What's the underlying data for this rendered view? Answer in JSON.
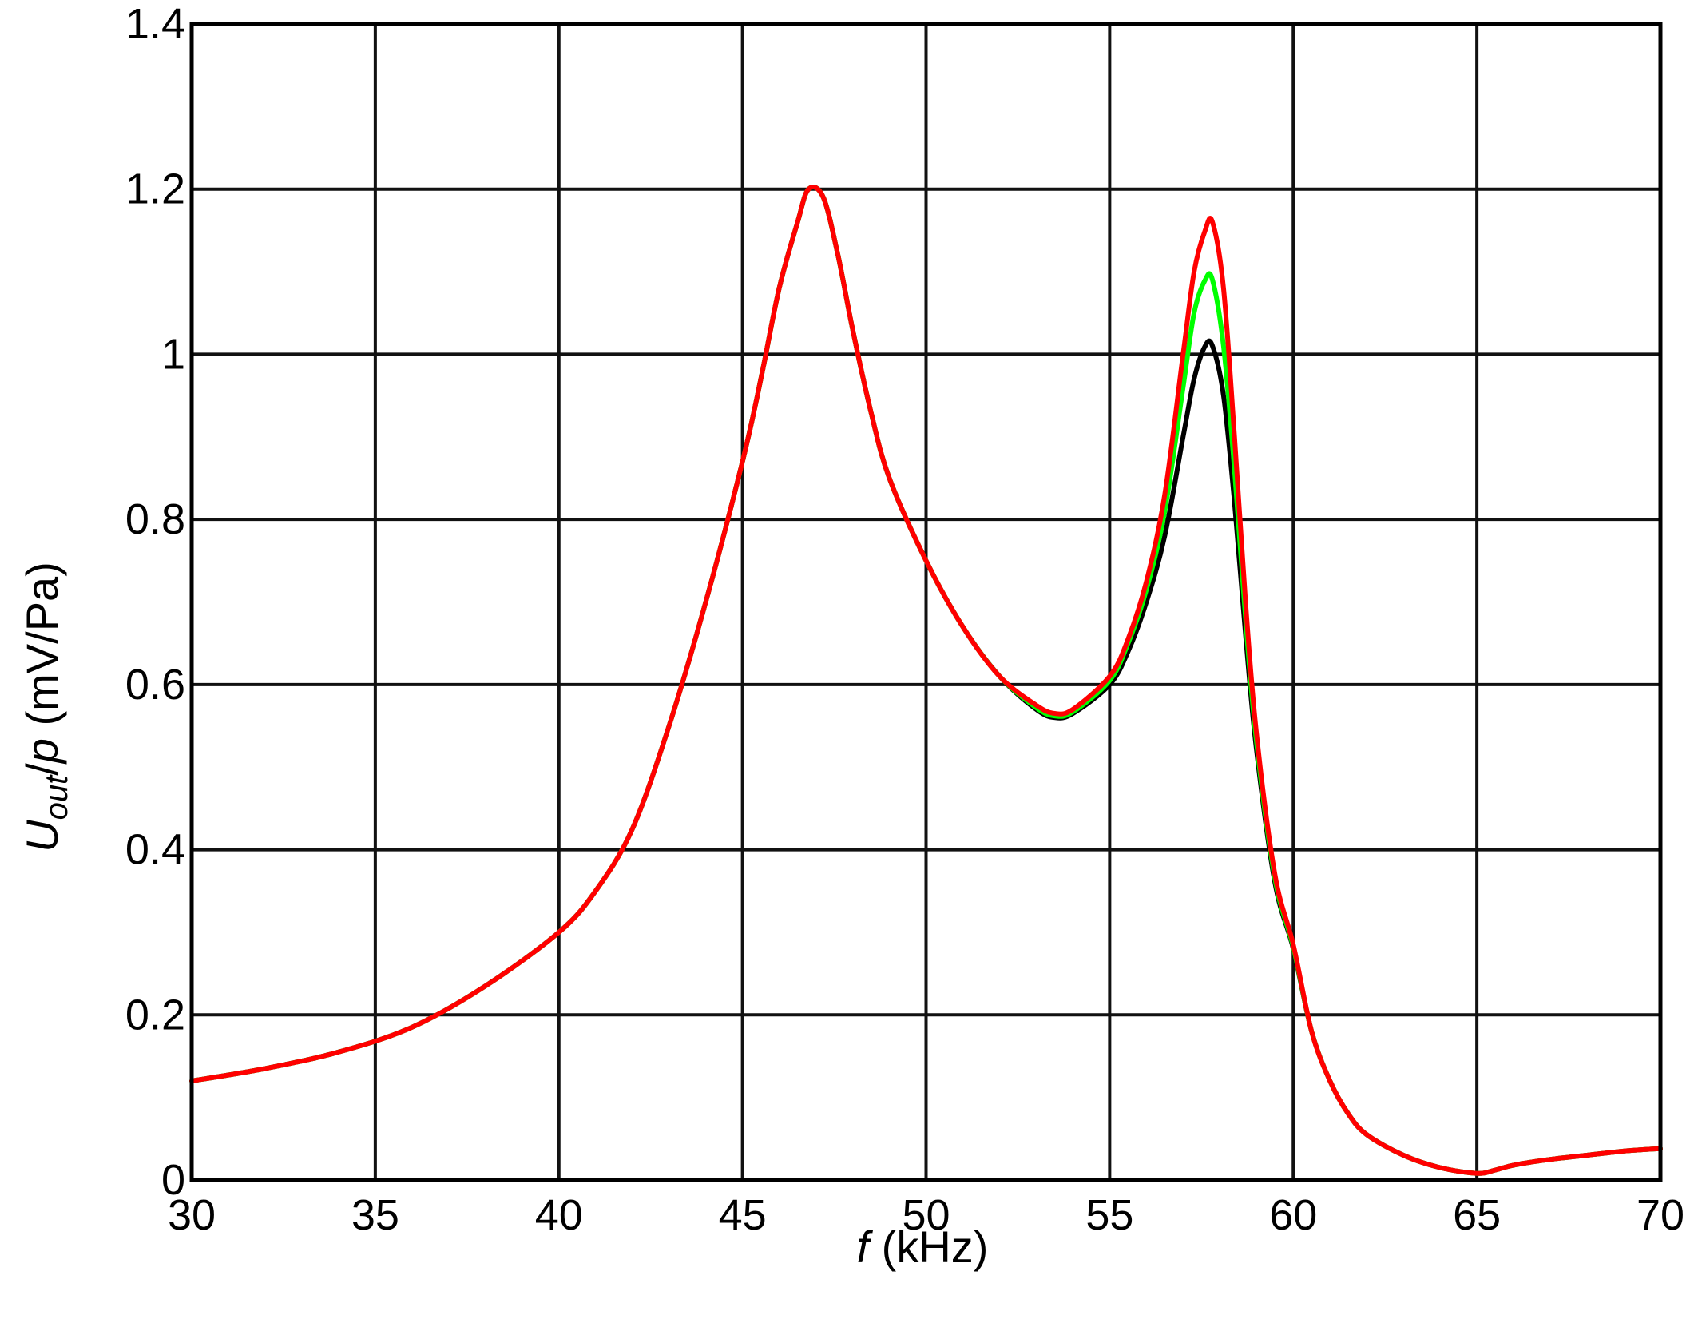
{
  "chart_data": {
    "type": "line",
    "title": "",
    "xlabel": {
      "italic_part": "f",
      "rest": " (kHz)"
    },
    "ylabel": {
      "base": "U",
      "subscript": "out",
      "mid": "/",
      "italic_var": "p",
      "rest": " (mV/Pa)"
    },
    "xlim": [
      30,
      70
    ],
    "ylim": [
      0,
      1.4
    ],
    "xticks": [
      30,
      35,
      40,
      45,
      50,
      55,
      60,
      65,
      70
    ],
    "yticks": [
      0,
      0.2,
      0.4,
      0.6,
      0.8,
      1,
      1.2,
      1.4
    ],
    "xtick_labels": [
      "30",
      "35",
      "40",
      "45",
      "50",
      "55",
      "60",
      "65",
      "70"
    ],
    "ytick_labels": [
      "0",
      "0.2",
      "0.4",
      "0.6",
      "0.8",
      "1",
      "1.2",
      "1.4"
    ],
    "grid": true,
    "series": [
      {
        "color": "#000000",
        "x": [
          30,
          32,
          34,
          36,
          38,
          40,
          41,
          42,
          43,
          44,
          45,
          45.5,
          46,
          46.5,
          46.8,
          47.2,
          47.6,
          48,
          48.5,
          49,
          50,
          51,
          52,
          53,
          53.5,
          54,
          55,
          55.5,
          56,
          56.5,
          57,
          57.3,
          57.6,
          57.8,
          58.1,
          58.4,
          58.7,
          59,
          59.5,
          60,
          60.5,
          61,
          61.5,
          62,
          63,
          64,
          65,
          65.5,
          66,
          67,
          68,
          69,
          70
        ],
        "y": [
          0.12,
          0.135,
          0.155,
          0.185,
          0.235,
          0.3,
          0.35,
          0.425,
          0.55,
          0.7,
          0.87,
          0.97,
          1.08,
          1.16,
          1.2,
          1.19,
          1.12,
          1.03,
          0.93,
          0.85,
          0.75,
          0.67,
          0.61,
          0.57,
          0.56,
          0.565,
          0.6,
          0.64,
          0.7,
          0.78,
          0.9,
          0.97,
          1.01,
          1.01,
          0.95,
          0.82,
          0.66,
          0.52,
          0.36,
          0.28,
          0.18,
          0.12,
          0.08,
          0.055,
          0.03,
          0.015,
          0.008,
          0.012,
          0.018,
          0.025,
          0.03,
          0.035,
          0.038
        ]
      },
      {
        "color": "#00ff00",
        "x": [
          30,
          32,
          34,
          36,
          38,
          40,
          41,
          42,
          43,
          44,
          45,
          45.5,
          46,
          46.5,
          46.8,
          47.2,
          47.6,
          48,
          48.5,
          49,
          50,
          51,
          52,
          53,
          53.5,
          54,
          55,
          55.5,
          56,
          56.5,
          57,
          57.3,
          57.6,
          57.8,
          58.1,
          58.4,
          58.7,
          59,
          59.5,
          60,
          60.5,
          61,
          61.5,
          62,
          63,
          64,
          65,
          65.5,
          66,
          67,
          68,
          69,
          70
        ],
        "y": [
          0.12,
          0.135,
          0.155,
          0.185,
          0.235,
          0.3,
          0.35,
          0.425,
          0.55,
          0.7,
          0.87,
          0.97,
          1.08,
          1.16,
          1.2,
          1.19,
          1.12,
          1.03,
          0.93,
          0.85,
          0.75,
          0.67,
          0.61,
          0.572,
          0.562,
          0.567,
          0.605,
          0.65,
          0.715,
          0.81,
          0.96,
          1.05,
          1.09,
          1.09,
          1.01,
          0.86,
          0.68,
          0.53,
          0.365,
          0.282,
          0.18,
          0.12,
          0.08,
          0.055,
          0.03,
          0.015,
          0.008,
          0.012,
          0.018,
          0.025,
          0.03,
          0.035,
          0.038
        ]
      },
      {
        "color": "#ff0000",
        "x": [
          30,
          32,
          34,
          36,
          38,
          40,
          41,
          42,
          43,
          44,
          45,
          45.5,
          46,
          46.5,
          46.8,
          47.2,
          47.6,
          48,
          48.5,
          49,
          50,
          51,
          52,
          53,
          53.5,
          54,
          55,
          55.5,
          56,
          56.5,
          57,
          57.3,
          57.6,
          57.8,
          58.1,
          58.4,
          58.7,
          59,
          59.5,
          60,
          60.5,
          61,
          61.5,
          62,
          63,
          64,
          65,
          65.5,
          66,
          67,
          68,
          69,
          70
        ],
        "y": [
          0.12,
          0.135,
          0.155,
          0.185,
          0.235,
          0.3,
          0.35,
          0.425,
          0.55,
          0.7,
          0.87,
          0.97,
          1.08,
          1.16,
          1.2,
          1.19,
          1.12,
          1.03,
          0.93,
          0.85,
          0.75,
          0.67,
          0.61,
          0.575,
          0.565,
          0.57,
          0.61,
          0.655,
          0.725,
          0.83,
          1.0,
          1.1,
          1.15,
          1.16,
          1.08,
          0.9,
          0.7,
          0.54,
          0.37,
          0.285,
          0.18,
          0.12,
          0.08,
          0.055,
          0.03,
          0.015,
          0.008,
          0.012,
          0.018,
          0.025,
          0.03,
          0.035,
          0.038
        ]
      }
    ]
  }
}
